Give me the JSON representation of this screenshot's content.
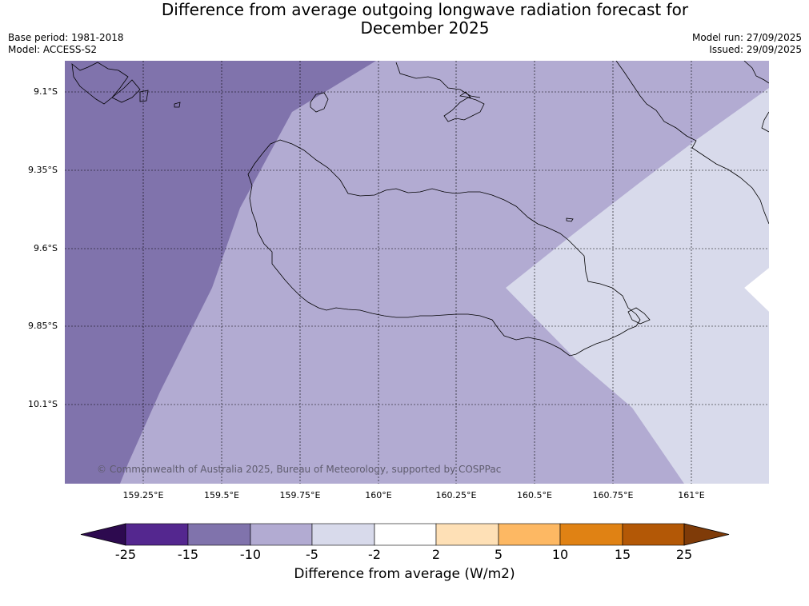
{
  "title": {
    "line1": "Difference from average outgoing longwave radiation forecast for",
    "line2": "December 2025"
  },
  "meta": {
    "base_period": "Base period: 1981-2018",
    "model": "Model: ACCESS-S2",
    "model_run": "Model run: 27/09/2025",
    "issued": "Issued: 29/09/2025"
  },
  "axes": {
    "lat_labels": [
      "9.1°S",
      "9.35°S",
      "9.6°S",
      "9.85°S",
      "10.1°S"
    ],
    "lon_labels": [
      "159.25°E",
      "159.5°E",
      "159.75°E",
      "160°E",
      "160.25°E",
      "160.5°E",
      "160.75°E",
      "161°E"
    ]
  },
  "copyright": "© Commonwealth of Australia 2025, Bureau of Meteorology, supported by COSPPac",
  "colorbar": {
    "title": "Difference from average (W/m2)",
    "ticks": [
      "-25",
      "-15",
      "-10",
      "-5",
      "-2",
      "2",
      "5",
      "10",
      "15",
      "25"
    ],
    "colors": [
      "#2d0a4f",
      "#54278f",
      "#8073ac",
      "#b2abd2",
      "#d8daeb",
      "#ffffff",
      "#fee0b6",
      "#fdb863",
      "#e08214",
      "#b35806",
      "#7f3b08"
    ]
  },
  "regions": {
    "colors": {
      "minus15_to_minus10": "#8073ac",
      "minus10_to_minus5": "#b2abd2",
      "minus5_to_minus2": "#d8daeb",
      "minus2_to_2": "#ffffff"
    }
  }
}
